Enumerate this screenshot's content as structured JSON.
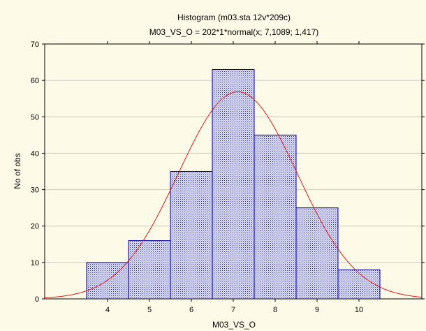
{
  "chart_data": {
    "type": "bar",
    "title": "Histogram (m03.sta 12v*209c)",
    "subtitle": "M03_VS_O = 202*1*normal(x; 7,1089; 1,417)",
    "xlabel": "M03_VS_O",
    "ylabel": "No of obs",
    "categories": [
      "4",
      "5",
      "6",
      "7",
      "8",
      "9",
      "10"
    ],
    "values": [
      10,
      16,
      35,
      63,
      45,
      25,
      8
    ],
    "xlim": [
      2.5,
      11.5
    ],
    "ylim": [
      0,
      70
    ],
    "yticks": [
      0,
      10,
      20,
      30,
      40,
      50,
      60,
      70
    ],
    "grid": true,
    "fit_curve": {
      "type": "normal",
      "n": 202,
      "bin_width": 1,
      "mean": 7.1089,
      "sd": 1.417
    },
    "colors": {
      "background": "#fdfbe8",
      "bar_fill": "#c4c8e0",
      "bar_stroke": "#0000b4",
      "curve": "#e01818",
      "grid": "#c8c8c8",
      "axis": "#000000"
    }
  }
}
